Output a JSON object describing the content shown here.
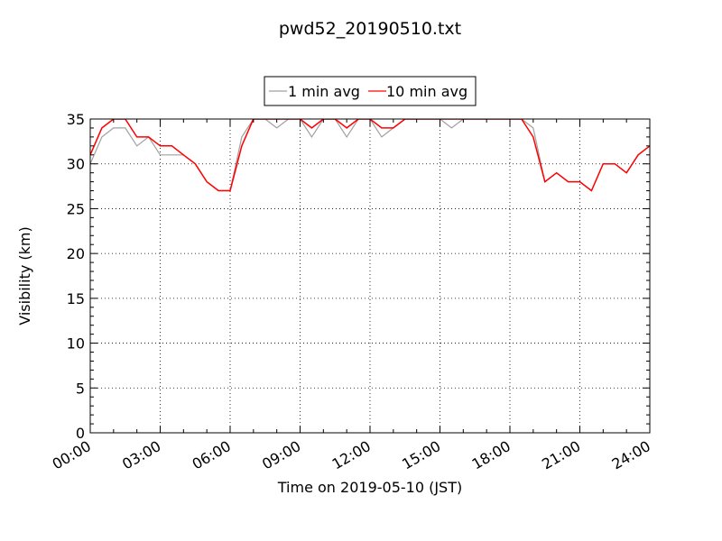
{
  "chart_data": {
    "type": "line",
    "title": "pwd52_20190510.txt",
    "xlabel": "Time on 2019-05-10 (JST)",
    "ylabel": "Visibility (km)",
    "xlim": [
      "00:00",
      "24:00"
    ],
    "ylim": [
      0,
      35
    ],
    "x_ticks": [
      "00:00",
      "03:00",
      "06:00",
      "09:00",
      "12:00",
      "15:00",
      "18:00",
      "21:00",
      "24:00"
    ],
    "y_ticks": [
      0,
      5,
      10,
      15,
      20,
      25,
      30,
      35
    ],
    "grid": true,
    "legend_position": "top-center",
    "series": [
      {
        "name": "1 min avg",
        "color": "#a0a0a0",
        "x": [
          "00:00",
          "00:30",
          "01:00",
          "01:30",
          "02:00",
          "02:30",
          "03:00",
          "03:30",
          "04:00",
          "04:30",
          "05:00",
          "05:30",
          "06:00",
          "06:30",
          "07:00",
          "07:30",
          "08:00",
          "08:30",
          "09:00",
          "09:30",
          "10:00",
          "10:30",
          "11:00",
          "11:30",
          "12:00",
          "12:30",
          "13:00",
          "13:30",
          "14:00",
          "14:30",
          "15:00",
          "15:30",
          "16:00",
          "16:30",
          "17:00",
          "17:30",
          "18:00",
          "18:30",
          "19:00",
          "19:30",
          "20:00",
          "20:30",
          "21:00",
          "21:30",
          "22:00",
          "22:30",
          "23:00",
          "23:30",
          "24:00"
        ],
        "y": [
          30,
          33,
          34,
          34,
          32,
          33,
          31,
          31,
          31,
          30,
          28,
          27,
          27,
          33,
          35,
          35,
          34,
          35,
          35,
          33,
          35,
          35,
          33,
          35,
          35,
          33,
          34,
          35,
          35,
          35,
          35,
          34,
          35,
          35,
          35,
          35,
          35,
          35,
          34,
          28,
          29,
          28,
          28,
          27,
          30,
          30,
          29,
          31,
          32
        ]
      },
      {
        "name": "10 min avg",
        "color": "#ff0000",
        "x": [
          "00:00",
          "00:30",
          "01:00",
          "01:30",
          "02:00",
          "02:30",
          "03:00",
          "03:30",
          "04:00",
          "04:30",
          "05:00",
          "05:30",
          "06:00",
          "06:30",
          "07:00",
          "07:30",
          "08:00",
          "08:30",
          "09:00",
          "09:30",
          "10:00",
          "10:30",
          "11:00",
          "11:30",
          "12:00",
          "12:30",
          "13:00",
          "13:30",
          "14:00",
          "14:30",
          "15:00",
          "15:30",
          "16:00",
          "16:30",
          "17:00",
          "17:30",
          "18:00",
          "18:30",
          "19:00",
          "19:30",
          "20:00",
          "20:30",
          "21:00",
          "21:30",
          "22:00",
          "22:30",
          "23:00",
          "23:30",
          "24:00"
        ],
        "y": [
          31,
          34,
          35,
          35,
          33,
          33,
          32,
          32,
          31,
          30,
          28,
          27,
          27,
          32,
          35,
          35,
          35,
          35,
          35,
          34,
          35,
          35,
          34,
          35,
          35,
          34,
          34,
          35,
          35,
          35,
          35,
          35,
          35,
          35,
          35,
          35,
          35,
          35,
          33,
          28,
          29,
          28,
          28,
          27,
          30,
          30,
          29,
          31,
          32
        ]
      }
    ]
  }
}
